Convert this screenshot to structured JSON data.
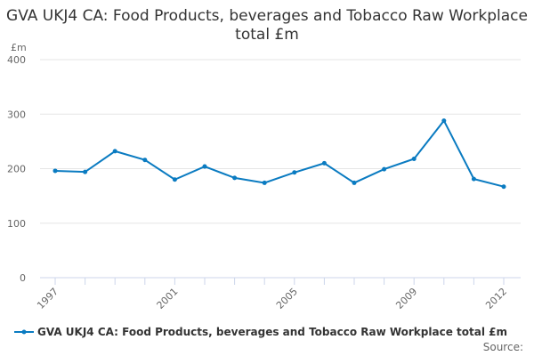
{
  "chart_data": {
    "type": "line",
    "title": "GVA UKJ4 CA: Food Products, beverages and Tobacco Raw Workplace total £m",
    "ylabel": "£m",
    "ylim": [
      0,
      400
    ],
    "yticks": [
      0,
      100,
      200,
      300,
      400
    ],
    "x": [
      1997,
      1998,
      1999,
      2000,
      2001,
      2002,
      2003,
      2004,
      2005,
      2006,
      2007,
      2008,
      2009,
      2010,
      2011,
      2012
    ],
    "xticklabels": [
      "1997",
      "2001",
      "2005",
      "2009",
      "2012"
    ],
    "grid": true,
    "legend_position": "bottom",
    "series": [
      {
        "name": "GVA UKJ4 CA: Food Products, beverages and Tobacco Raw Workplace total £m",
        "color": "#0a7bc1",
        "values": [
          196,
          194,
          232,
          216,
          180,
          204,
          183,
          174,
          193,
          210,
          174,
          199,
          218,
          288,
          181,
          167
        ]
      }
    ],
    "source": "Source:"
  }
}
